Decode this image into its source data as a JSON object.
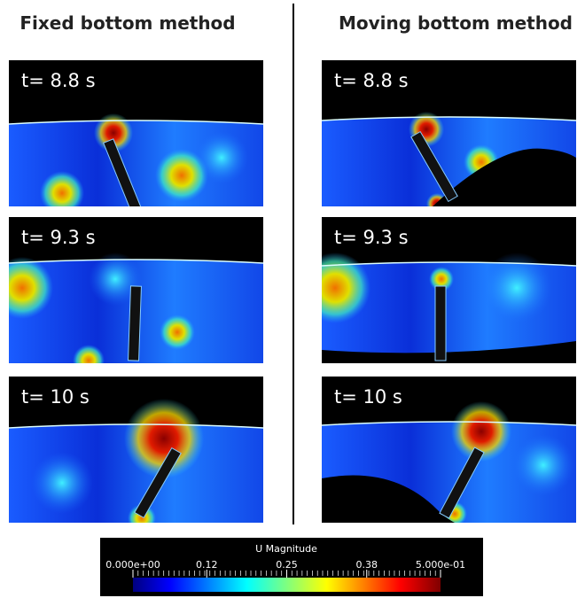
{
  "columns": [
    {
      "heading": "Fixed bottom method",
      "panels": [
        {
          "label": "t= 8.8 s"
        },
        {
          "label": "t= 9.3 s"
        },
        {
          "label": "t= 10 s"
        }
      ]
    },
    {
      "heading": "Moving bottom method",
      "panels": [
        {
          "label": "t= 8.8 s"
        },
        {
          "label": "t= 9.3 s"
        },
        {
          "label": "t= 10 s"
        }
      ]
    }
  ],
  "colorbar": {
    "title": "U Magnitude",
    "range": [
      0,
      0.5
    ],
    "ticks": [
      {
        "value": 0,
        "label": "0.000e+00"
      },
      0.12,
      0.25,
      0.38,
      {
        "value": 0.5,
        "label": "5.000e-01"
      }
    ]
  }
}
